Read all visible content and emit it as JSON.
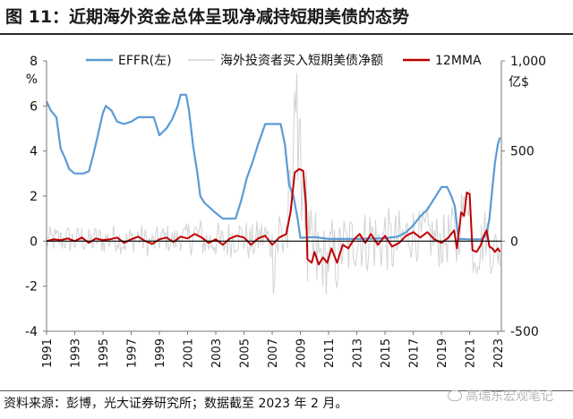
{
  "title": "图 11：近期海外资金总体呈现净减持短期美债的态势",
  "source": "资料来源：彭博，光大证券研究所；数据截至 2023 年 2 月。",
  "watermark": "高瑞东宏观笔记",
  "chart_data": {
    "type": "line",
    "left_axis": {
      "unit": "%",
      "ylim": [
        -4,
        8
      ],
      "ticks": [
        -4,
        -2,
        0,
        2,
        4,
        6,
        8
      ]
    },
    "right_axis": {
      "unit": "亿$",
      "ylim": [
        -500,
        1000
      ],
      "ticks": [
        -500,
        0,
        500,
        "1,000"
      ]
    },
    "x_ticks": [
      "1991",
      "1993",
      "1995",
      "1997",
      "1999",
      "2001",
      "2003",
      "2005",
      "2007",
      "2009",
      "2011",
      "2013",
      "2015",
      "2017",
      "2019",
      "2021",
      "2023"
    ],
    "xlim": [
      1991,
      2023.25
    ],
    "legend_position": "top",
    "series": [
      {
        "name": "EFFR(左)",
        "axis": "left",
        "color": "#5b9bd5",
        "points": [
          [
            1991.0,
            6.2
          ],
          [
            1991.3,
            5.8
          ],
          [
            1991.7,
            5.5
          ],
          [
            1992.0,
            4.1
          ],
          [
            1992.3,
            3.7
          ],
          [
            1992.6,
            3.2
          ],
          [
            1993.0,
            3.0
          ],
          [
            1993.6,
            3.0
          ],
          [
            1994.0,
            3.1
          ],
          [
            1994.3,
            3.8
          ],
          [
            1994.6,
            4.6
          ],
          [
            1995.0,
            5.7
          ],
          [
            1995.2,
            6.0
          ],
          [
            1995.6,
            5.8
          ],
          [
            1996.0,
            5.3
          ],
          [
            1996.5,
            5.2
          ],
          [
            1997.0,
            5.3
          ],
          [
            1997.5,
            5.5
          ],
          [
            1998.0,
            5.5
          ],
          [
            1998.6,
            5.5
          ],
          [
            1998.8,
            5.1
          ],
          [
            1999.0,
            4.7
          ],
          [
            1999.5,
            5.0
          ],
          [
            1999.9,
            5.4
          ],
          [
            2000.3,
            6.0
          ],
          [
            2000.5,
            6.5
          ],
          [
            2000.9,
            6.5
          ],
          [
            2001.1,
            5.8
          ],
          [
            2001.4,
            4.2
          ],
          [
            2001.7,
            3.0
          ],
          [
            2001.9,
            2.0
          ],
          [
            2002.2,
            1.7
          ],
          [
            2002.9,
            1.3
          ],
          [
            2003.5,
            1.0
          ],
          [
            2004.4,
            1.0
          ],
          [
            2004.8,
            1.8
          ],
          [
            2005.2,
            2.8
          ],
          [
            2005.6,
            3.5
          ],
          [
            2006.0,
            4.3
          ],
          [
            2006.5,
            5.2
          ],
          [
            2007.6,
            5.2
          ],
          [
            2007.9,
            4.3
          ],
          [
            2008.2,
            2.5
          ],
          [
            2008.5,
            2.0
          ],
          [
            2008.8,
            1.0
          ],
          [
            2009.0,
            0.15
          ],
          [
            2010.0,
            0.18
          ],
          [
            2011.0,
            0.1
          ],
          [
            2013.0,
            0.1
          ],
          [
            2015.0,
            0.13
          ],
          [
            2015.9,
            0.2
          ],
          [
            2016.5,
            0.4
          ],
          [
            2017.0,
            0.7
          ],
          [
            2017.5,
            1.1
          ],
          [
            2018.0,
            1.4
          ],
          [
            2018.5,
            1.9
          ],
          [
            2019.0,
            2.4
          ],
          [
            2019.4,
            2.4
          ],
          [
            2019.7,
            2.0
          ],
          [
            2019.95,
            1.55
          ],
          [
            2020.2,
            0.1
          ],
          [
            2021.0,
            0.08
          ],
          [
            2021.9,
            0.08
          ],
          [
            2022.2,
            0.3
          ],
          [
            2022.4,
            1.0
          ],
          [
            2022.6,
            2.3
          ],
          [
            2022.8,
            3.5
          ],
          [
            2023.0,
            4.3
          ],
          [
            2023.15,
            4.6
          ]
        ]
      },
      {
        "name": "海外投资者买入短期美债净额",
        "axis": "right",
        "color": "#d3d3d3",
        "note": "monthly values, -500 to 1000 range, highly volatile"
      },
      {
        "name": "12MMA",
        "axis": "right",
        "color": "#c00000",
        "points": [
          [
            1991.0,
            0
          ],
          [
            1991.5,
            10
          ],
          [
            1992.0,
            5
          ],
          [
            1992.5,
            15
          ],
          [
            1993.0,
            0
          ],
          [
            1993.5,
            20
          ],
          [
            1994.0,
            -10
          ],
          [
            1994.5,
            15
          ],
          [
            1995.0,
            5
          ],
          [
            1995.5,
            10
          ],
          [
            1996.0,
            20
          ],
          [
            1996.5,
            -10
          ],
          [
            1997.0,
            10
          ],
          [
            1997.5,
            25
          ],
          [
            1998.0,
            0
          ],
          [
            1998.5,
            -15
          ],
          [
            1999.0,
            10
          ],
          [
            1999.5,
            20
          ],
          [
            2000.0,
            -5
          ],
          [
            2000.5,
            25
          ],
          [
            2001.0,
            15
          ],
          [
            2001.5,
            40
          ],
          [
            2002.0,
            20
          ],
          [
            2002.5,
            -10
          ],
          [
            2003.0,
            10
          ],
          [
            2003.5,
            -20
          ],
          [
            2004.0,
            15
          ],
          [
            2004.5,
            30
          ],
          [
            2005.0,
            20
          ],
          [
            2005.5,
            -20
          ],
          [
            2006.0,
            15
          ],
          [
            2006.5,
            30
          ],
          [
            2007.0,
            -20
          ],
          [
            2007.5,
            20
          ],
          [
            2008.0,
            40
          ],
          [
            2008.3,
            160
          ],
          [
            2008.6,
            380
          ],
          [
            2008.9,
            400
          ],
          [
            2009.2,
            390
          ],
          [
            2009.4,
            200
          ],
          [
            2009.5,
            -100
          ],
          [
            2009.8,
            -120
          ],
          [
            2010.0,
            -60
          ],
          [
            2010.3,
            -130
          ],
          [
            2010.6,
            -90
          ],
          [
            2010.9,
            -120
          ],
          [
            2011.2,
            -40
          ],
          [
            2011.6,
            -120
          ],
          [
            2012.0,
            -20
          ],
          [
            2012.4,
            -40
          ],
          [
            2012.8,
            10
          ],
          [
            2013.2,
            40
          ],
          [
            2013.6,
            -10
          ],
          [
            2014.0,
            40
          ],
          [
            2014.5,
            -20
          ],
          [
            2015.0,
            30
          ],
          [
            2015.5,
            -30
          ],
          [
            2016.0,
            -10
          ],
          [
            2016.5,
            30
          ],
          [
            2017.0,
            50
          ],
          [
            2017.5,
            20
          ],
          [
            2018.0,
            50
          ],
          [
            2018.5,
            10
          ],
          [
            2019.0,
            -10
          ],
          [
            2019.5,
            20
          ],
          [
            2019.9,
            60
          ],
          [
            2020.1,
            -40
          ],
          [
            2020.4,
            160
          ],
          [
            2020.6,
            140
          ],
          [
            2020.8,
            270
          ],
          [
            2021.0,
            260
          ],
          [
            2021.2,
            -50
          ],
          [
            2021.5,
            -60
          ],
          [
            2021.8,
            -20
          ],
          [
            2022.0,
            30
          ],
          [
            2022.2,
            60
          ],
          [
            2022.4,
            -30
          ],
          [
            2022.6,
            -40
          ],
          [
            2022.8,
            -60
          ],
          [
            2023.0,
            -40
          ],
          [
            2023.15,
            -60
          ]
        ]
      }
    ]
  }
}
